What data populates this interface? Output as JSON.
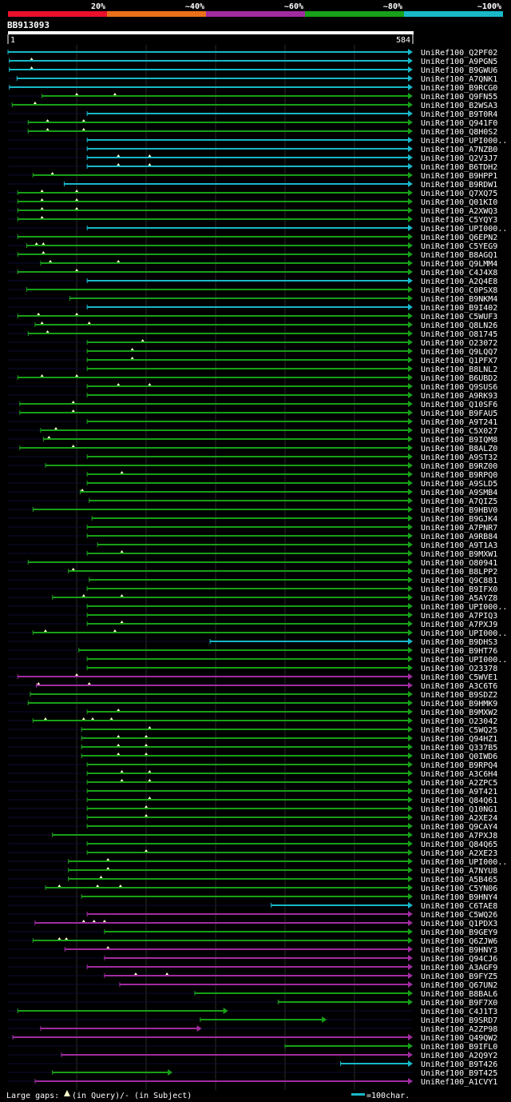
{
  "chart_data": {
    "type": "alignment-overview",
    "title": "BB913093",
    "query_length": 584,
    "query_start_label": "1",
    "query_end_label": "584",
    "identity_legend": [
      {
        "label": "20%",
        "color": "#e8102a"
      },
      {
        "label": "~40%",
        "color": "#e8701a"
      },
      {
        "label": "~60%",
        "color": "#a02ca0"
      },
      {
        "label": "~80%",
        "color": "#18a018"
      },
      {
        "label": "~100%",
        "color": "#18b8c8"
      }
    ],
    "footer": {
      "gaps_prefix": "Large gaps:",
      "gaps_query": "(in Query)",
      "gaps_subject": "/- (in Subject)",
      "scale_label": "=100char."
    },
    "hits": [
      {
        "name": "UniRef100_Q2PF02",
        "start": 1,
        "end": 584,
        "color": "#18b8c8",
        "gaps": []
      },
      {
        "name": "UniRef100_A9PGN5",
        "start": 3,
        "end": 584,
        "color": "#18b8c8",
        "gaps": [
          35
        ]
      },
      {
        "name": "UniRef100_B9GWU6",
        "start": 3,
        "end": 584,
        "color": "#18b8c8",
        "gaps": [
          35
        ]
      },
      {
        "name": "UniRef100_A7QNK1",
        "start": 14,
        "end": 584,
        "color": "#18b8c8",
        "gaps": []
      },
      {
        "name": "UniRef100_B9RCG0",
        "start": 3,
        "end": 584,
        "color": "#18b8c8",
        "gaps": []
      },
      {
        "name": "UniRef100_Q9FN55",
        "start": 50,
        "end": 584,
        "color": "#18a018",
        "gaps": [
          100,
          155
        ]
      },
      {
        "name": "UniRef100_B2WSA3",
        "start": 7,
        "end": 584,
        "color": "#18a018",
        "gaps": [
          40
        ]
      },
      {
        "name": "UniRef100_B9T0R4",
        "start": 115,
        "end": 584,
        "color": "#18b8c8",
        "gaps": []
      },
      {
        "name": "UniRef100_Q941F0",
        "start": 30,
        "end": 584,
        "color": "#18a018",
        "gaps": [
          58,
          110
        ]
      },
      {
        "name": "UniRef100_Q8H0S2",
        "start": 30,
        "end": 584,
        "color": "#18a018",
        "gaps": [
          58,
          110
        ]
      },
      {
        "name": "UniRef100_UPI000..",
        "start": 115,
        "end": 584,
        "color": "#18b8c8",
        "gaps": []
      },
      {
        "name": "UniRef100_A7NZB0",
        "start": 115,
        "end": 584,
        "color": "#18b8c8",
        "gaps": []
      },
      {
        "name": "UniRef100_Q2V3J7",
        "start": 115,
        "end": 584,
        "color": "#18b8c8",
        "gaps": [
          160,
          205
        ]
      },
      {
        "name": "UniRef100_B6TDH2",
        "start": 115,
        "end": 584,
        "color": "#18b8c8",
        "gaps": [
          160,
          205
        ]
      },
      {
        "name": "UniRef100_B9HPP1",
        "start": 37,
        "end": 584,
        "color": "#18a018",
        "gaps": [
          65
        ]
      },
      {
        "name": "UniRef100_B9RDW1",
        "start": 82,
        "end": 584,
        "color": "#18b8c8",
        "gaps": []
      },
      {
        "name": "UniRef100_Q7XQ75",
        "start": 15,
        "end": 584,
        "color": "#18a018",
        "gaps": [
          50,
          100
        ]
      },
      {
        "name": "UniRef100_Q01KI0",
        "start": 15,
        "end": 584,
        "color": "#18a018",
        "gaps": [
          50,
          100
        ]
      },
      {
        "name": "UniRef100_A2XWQ3",
        "start": 15,
        "end": 584,
        "color": "#18a018",
        "gaps": [
          50,
          100
        ]
      },
      {
        "name": "UniRef100_C5YQY3",
        "start": 15,
        "end": 584,
        "color": "#18a018",
        "gaps": [
          50
        ]
      },
      {
        "name": "UniRef100_UPI000..",
        "start": 115,
        "end": 584,
        "color": "#18b8c8",
        "gaps": []
      },
      {
        "name": "UniRef100_Q6EPN2",
        "start": 15,
        "end": 584,
        "color": "#18a018",
        "gaps": []
      },
      {
        "name": "UniRef100_C5YEG9",
        "start": 28,
        "end": 584,
        "color": "#18a018",
        "gaps": [
          42,
          52
        ]
      },
      {
        "name": "UniRef100_B8AGQ1",
        "start": 15,
        "end": 584,
        "color": "#18a018",
        "gaps": [
          52
        ]
      },
      {
        "name": "UniRef100_Q9LMM4",
        "start": 48,
        "end": 584,
        "color": "#18a018",
        "gaps": [
          62,
          160
        ]
      },
      {
        "name": "UniRef100_C4J4X8",
        "start": 15,
        "end": 584,
        "color": "#18a018",
        "gaps": [
          100
        ]
      },
      {
        "name": "UniRef100_A2Q4E8",
        "start": 115,
        "end": 584,
        "color": "#18b8c8",
        "gaps": []
      },
      {
        "name": "UniRef100_C0PSX8",
        "start": 28,
        "end": 584,
        "color": "#18a018",
        "gaps": []
      },
      {
        "name": "UniRef100_B9NKM4",
        "start": 90,
        "end": 584,
        "color": "#18a018",
        "gaps": []
      },
      {
        "name": "UniRef100_B9I402",
        "start": 115,
        "end": 584,
        "color": "#18b8c8",
        "gaps": []
      },
      {
        "name": "UniRef100_C5WUF3",
        "start": 15,
        "end": 584,
        "color": "#18a018",
        "gaps": [
          45,
          100
        ]
      },
      {
        "name": "UniRef100_Q8LN26",
        "start": 40,
        "end": 584,
        "color": "#18a018",
        "gaps": [
          50,
          118
        ]
      },
      {
        "name": "UniRef100_O81745",
        "start": 30,
        "end": 584,
        "color": "#18a018",
        "gaps": [
          58
        ]
      },
      {
        "name": "UniRef100_O23072",
        "start": 115,
        "end": 584,
        "color": "#18a018",
        "gaps": [
          195
        ]
      },
      {
        "name": "UniRef100_Q9LQQ7",
        "start": 115,
        "end": 584,
        "color": "#18a018",
        "gaps": [
          180
        ]
      },
      {
        "name": "UniRef100_Q1PFX7",
        "start": 115,
        "end": 584,
        "color": "#18a018",
        "gaps": [
          180
        ]
      },
      {
        "name": "UniRef100_B8LNL2",
        "start": 115,
        "end": 584,
        "color": "#18a018",
        "gaps": []
      },
      {
        "name": "UniRef100_B6UBD2",
        "start": 15,
        "end": 584,
        "color": "#18a018",
        "gaps": [
          50,
          100
        ]
      },
      {
        "name": "UniRef100_Q9SUS6",
        "start": 115,
        "end": 584,
        "color": "#18a018",
        "gaps": [
          160,
          205
        ]
      },
      {
        "name": "UniRef100_A9RK93",
        "start": 115,
        "end": 584,
        "color": "#18a018",
        "gaps": []
      },
      {
        "name": "UniRef100_Q10SF6",
        "start": 18,
        "end": 584,
        "color": "#18a018",
        "gaps": [
          95
        ]
      },
      {
        "name": "UniRef100_B9FAU5",
        "start": 18,
        "end": 584,
        "color": "#18a018",
        "gaps": [
          95
        ]
      },
      {
        "name": "UniRef100_A9T241",
        "start": 115,
        "end": 584,
        "color": "#18a018",
        "gaps": []
      },
      {
        "name": "UniRef100_C5X027",
        "start": 48,
        "end": 584,
        "color": "#18a018",
        "gaps": [
          70
        ]
      },
      {
        "name": "UniRef100_B9IQM8",
        "start": 52,
        "end": 584,
        "color": "#18a018",
        "gaps": [
          60
        ]
      },
      {
        "name": "UniRef100_B8ALZ0",
        "start": 18,
        "end": 584,
        "color": "#18a018",
        "gaps": [
          95
        ]
      },
      {
        "name": "UniRef100_A9ST32",
        "start": 115,
        "end": 584,
        "color": "#18a018",
        "gaps": []
      },
      {
        "name": "UniRef100_B9RZ00",
        "start": 55,
        "end": 584,
        "color": "#18a018",
        "gaps": []
      },
      {
        "name": "UniRef100_B9RPQ0",
        "start": 115,
        "end": 584,
        "color": "#18a018",
        "gaps": [
          165
        ]
      },
      {
        "name": "UniRef100_A9SLD5",
        "start": 115,
        "end": 584,
        "color": "#18a018",
        "gaps": []
      },
      {
        "name": "UniRef100_A9SMB4",
        "start": 105,
        "end": 584,
        "color": "#18a018",
        "gaps": [
          108
        ]
      },
      {
        "name": "UniRef100_A7QIZ5",
        "start": 118,
        "end": 584,
        "color": "#18a018",
        "gaps": []
      },
      {
        "name": "UniRef100_B9HBV0",
        "start": 37,
        "end": 584,
        "color": "#18a018",
        "gaps": []
      },
      {
        "name": "UniRef100_B9GJK4",
        "start": 122,
        "end": 584,
        "color": "#18a018",
        "gaps": []
      },
      {
        "name": "UniRef100_A7PNR7",
        "start": 115,
        "end": 584,
        "color": "#18a018",
        "gaps": []
      },
      {
        "name": "UniRef100_A9RB84",
        "start": 115,
        "end": 584,
        "color": "#18a018",
        "gaps": []
      },
      {
        "name": "UniRef100_A9T1A3",
        "start": 130,
        "end": 584,
        "color": "#18a018",
        "gaps": []
      },
      {
        "name": "UniRef100_B9MXW1",
        "start": 115,
        "end": 584,
        "color": "#18a018",
        "gaps": [
          165
        ]
      },
      {
        "name": "UniRef100_O80941",
        "start": 30,
        "end": 584,
        "color": "#18a018",
        "gaps": []
      },
      {
        "name": "UniRef100_B8LPP2",
        "start": 88,
        "end": 584,
        "color": "#18a018",
        "gaps": [
          95
        ]
      },
      {
        "name": "UniRef100_Q9C881",
        "start": 118,
        "end": 584,
        "color": "#18a018",
        "gaps": []
      },
      {
        "name": "UniRef100_B9IFX0",
        "start": 115,
        "end": 584,
        "color": "#18a018",
        "gaps": []
      },
      {
        "name": "UniRef100_A5AYZ8",
        "start": 65,
        "end": 584,
        "color": "#18a018",
        "gaps": [
          110,
          165
        ]
      },
      {
        "name": "UniRef100_UPI000..",
        "start": 115,
        "end": 584,
        "color": "#18a018",
        "gaps": []
      },
      {
        "name": "UniRef100_A7PIQ3",
        "start": 115,
        "end": 584,
        "color": "#18a018",
        "gaps": []
      },
      {
        "name": "UniRef100_A7PXJ9",
        "start": 115,
        "end": 584,
        "color": "#18a018",
        "gaps": [
          165
        ]
      },
      {
        "name": "UniRef100_UPI000..",
        "start": 37,
        "end": 584,
        "color": "#18a018",
        "gaps": [
          55,
          155
        ]
      },
      {
        "name": "UniRef100_B9DHS3",
        "start": 292,
        "end": 584,
        "color": "#18b8c8",
        "gaps": []
      },
      {
        "name": "UniRef100_B9HT76",
        "start": 103,
        "end": 584,
        "color": "#18a018",
        "gaps": []
      },
      {
        "name": "UniRef100_UPI000..",
        "start": 115,
        "end": 584,
        "color": "#18a018",
        "gaps": []
      },
      {
        "name": "UniRef100_O23378",
        "start": 115,
        "end": 584,
        "color": "#18a018",
        "gaps": []
      },
      {
        "name": "UniRef100_C5WVE1",
        "start": 15,
        "end": 584,
        "color": "#a02ca0",
        "gaps": [
          100
        ]
      },
      {
        "name": "UniRef100_A3C6T6",
        "start": 42,
        "end": 584,
        "color": "#a02ca0",
        "gaps": [
          45,
          118
        ]
      },
      {
        "name": "UniRef100_B9SDZ2",
        "start": 33,
        "end": 584,
        "color": "#18a018",
        "gaps": []
      },
      {
        "name": "UniRef100_B9HMK9",
        "start": 30,
        "end": 584,
        "color": "#18a018",
        "gaps": []
      },
      {
        "name": "UniRef100_B9MXW2",
        "start": 115,
        "end": 584,
        "color": "#18a018",
        "gaps": [
          160
        ]
      },
      {
        "name": "UniRef100_O23042",
        "start": 37,
        "end": 584,
        "color": "#18a018",
        "gaps": [
          55,
          110,
          123,
          150
        ]
      },
      {
        "name": "UniRef100_C5WQ25",
        "start": 107,
        "end": 584,
        "color": "#18a018",
        "gaps": [
          205
        ]
      },
      {
        "name": "UniRef100_Q94HZ1",
        "start": 107,
        "end": 584,
        "color": "#18a018",
        "gaps": [
          160,
          200
        ]
      },
      {
        "name": "UniRef100_Q337B5",
        "start": 107,
        "end": 584,
        "color": "#18a018",
        "gaps": [
          160,
          200
        ]
      },
      {
        "name": "UniRef100_Q0IWD6",
        "start": 107,
        "end": 584,
        "color": "#18a018",
        "gaps": [
          160,
          200
        ]
      },
      {
        "name": "UniRef100_B9RPQ4",
        "start": 115,
        "end": 584,
        "color": "#18a018",
        "gaps": []
      },
      {
        "name": "UniRef100_A3C6H4",
        "start": 115,
        "end": 584,
        "color": "#18a018",
        "gaps": [
          165,
          205
        ]
      },
      {
        "name": "UniRef100_A2ZPC5",
        "start": 115,
        "end": 584,
        "color": "#18a018",
        "gaps": [
          165,
          205
        ]
      },
      {
        "name": "UniRef100_A9T421",
        "start": 115,
        "end": 584,
        "color": "#18a018",
        "gaps": []
      },
      {
        "name": "UniRef100_Q84Q61",
        "start": 115,
        "end": 584,
        "color": "#18a018",
        "gaps": [
          205
        ]
      },
      {
        "name": "UniRef100_Q10NG1",
        "start": 115,
        "end": 584,
        "color": "#18a018",
        "gaps": [
          200
        ]
      },
      {
        "name": "UniRef100_A2XE24",
        "start": 115,
        "end": 584,
        "color": "#18a018",
        "gaps": [
          200
        ]
      },
      {
        "name": "UniRef100_Q9CAY4",
        "start": 115,
        "end": 584,
        "color": "#18a018",
        "gaps": []
      },
      {
        "name": "UniRef100_A7PXJ8",
        "start": 65,
        "end": 584,
        "color": "#18a018",
        "gaps": []
      },
      {
        "name": "UniRef100_Q84Q65",
        "start": 115,
        "end": 584,
        "color": "#18a018",
        "gaps": []
      },
      {
        "name": "UniRef100_A2XE23",
        "start": 115,
        "end": 584,
        "color": "#18a018",
        "gaps": [
          200
        ]
      },
      {
        "name": "UniRef100_UPI000..",
        "start": 88,
        "end": 584,
        "color": "#18a018",
        "gaps": [
          145
        ]
      },
      {
        "name": "UniRef100_A7NYU8",
        "start": 88,
        "end": 584,
        "color": "#18a018",
        "gaps": [
          145
        ]
      },
      {
        "name": "UniRef100_A5B465",
        "start": 88,
        "end": 584,
        "color": "#18a018",
        "gaps": [
          135
        ]
      },
      {
        "name": "UniRef100_C5YN06",
        "start": 55,
        "end": 584,
        "color": "#18a018",
        "gaps": [
          75,
          130,
          163
        ]
      },
      {
        "name": "UniRef100_B9HNY4",
        "start": 107,
        "end": 584,
        "color": "#18a018",
        "gaps": []
      },
      {
        "name": "UniRef100_C6TAE8",
        "start": 380,
        "end": 584,
        "color": "#18b8c8",
        "gaps": []
      },
      {
        "name": "UniRef100_C5WQ26",
        "start": 115,
        "end": 584,
        "color": "#a02ca0",
        "gaps": []
      },
      {
        "name": "UniRef100_Q1PDX3",
        "start": 40,
        "end": 584,
        "color": "#a02ca0",
        "gaps": [
          110,
          125,
          140
        ]
      },
      {
        "name": "UniRef100_B9GEY9",
        "start": 140,
        "end": 584,
        "color": "#18a018",
        "gaps": []
      },
      {
        "name": "UniRef100_Q6ZJW6",
        "start": 37,
        "end": 584,
        "color": "#18a018",
        "gaps": [
          75,
          85
        ]
      },
      {
        "name": "UniRef100_B9HNY3",
        "start": 83,
        "end": 584,
        "color": "#a02ca0",
        "gaps": [
          145
        ]
      },
      {
        "name": "UniRef100_Q94CJ6",
        "start": 140,
        "end": 584,
        "color": "#a02ca0",
        "gaps": []
      },
      {
        "name": "UniRef100_A3AGF9",
        "start": 115,
        "end": 584,
        "color": "#a02ca0",
        "gaps": []
      },
      {
        "name": "UniRef100_B9FYZ5",
        "start": 140,
        "end": 584,
        "color": "#a02ca0",
        "gaps": [
          185,
          230
        ]
      },
      {
        "name": "UniRef100_Q67UN2",
        "start": 162,
        "end": 584,
        "color": "#a02ca0",
        "gaps": []
      },
      {
        "name": "UniRef100_B8BAL6",
        "start": 270,
        "end": 584,
        "color": "#18a018",
        "gaps": []
      },
      {
        "name": "UniRef100_B9F7X0",
        "start": 390,
        "end": 584,
        "color": "#18a018",
        "gaps": []
      },
      {
        "name": "UniRef100_C4J1T3",
        "start": 15,
        "end": 318,
        "color": "#18a018",
        "gaps": []
      },
      {
        "name": "UniRef100_B9SRD7",
        "start": 278,
        "end": 460,
        "color": "#18a018",
        "gaps": []
      },
      {
        "name": "UniRef100_A2ZP98",
        "start": 48,
        "end": 280,
        "color": "#a02ca0",
        "gaps": []
      },
      {
        "name": "UniRef100_Q49QW2",
        "start": 8,
        "end": 584,
        "color": "#a02ca0",
        "gaps": []
      },
      {
        "name": "UniRef100_B9IFL0",
        "start": 400,
        "end": 584,
        "color": "#18a018",
        "gaps": []
      },
      {
        "name": "UniRef100_A2Q9Y2",
        "start": 78,
        "end": 584,
        "color": "#a02ca0",
        "gaps": []
      },
      {
        "name": "UniRef100_B9T426",
        "start": 480,
        "end": 584,
        "color": "#18b8c8",
        "gaps": []
      },
      {
        "name": "UniRef100_B9T425",
        "start": 65,
        "end": 238,
        "color": "#18a018",
        "gaps": []
      },
      {
        "name": "UniRef100_A1CVY1",
        "start": 40,
        "end": 584,
        "color": "#a02ca0",
        "gaps": []
      }
    ]
  }
}
